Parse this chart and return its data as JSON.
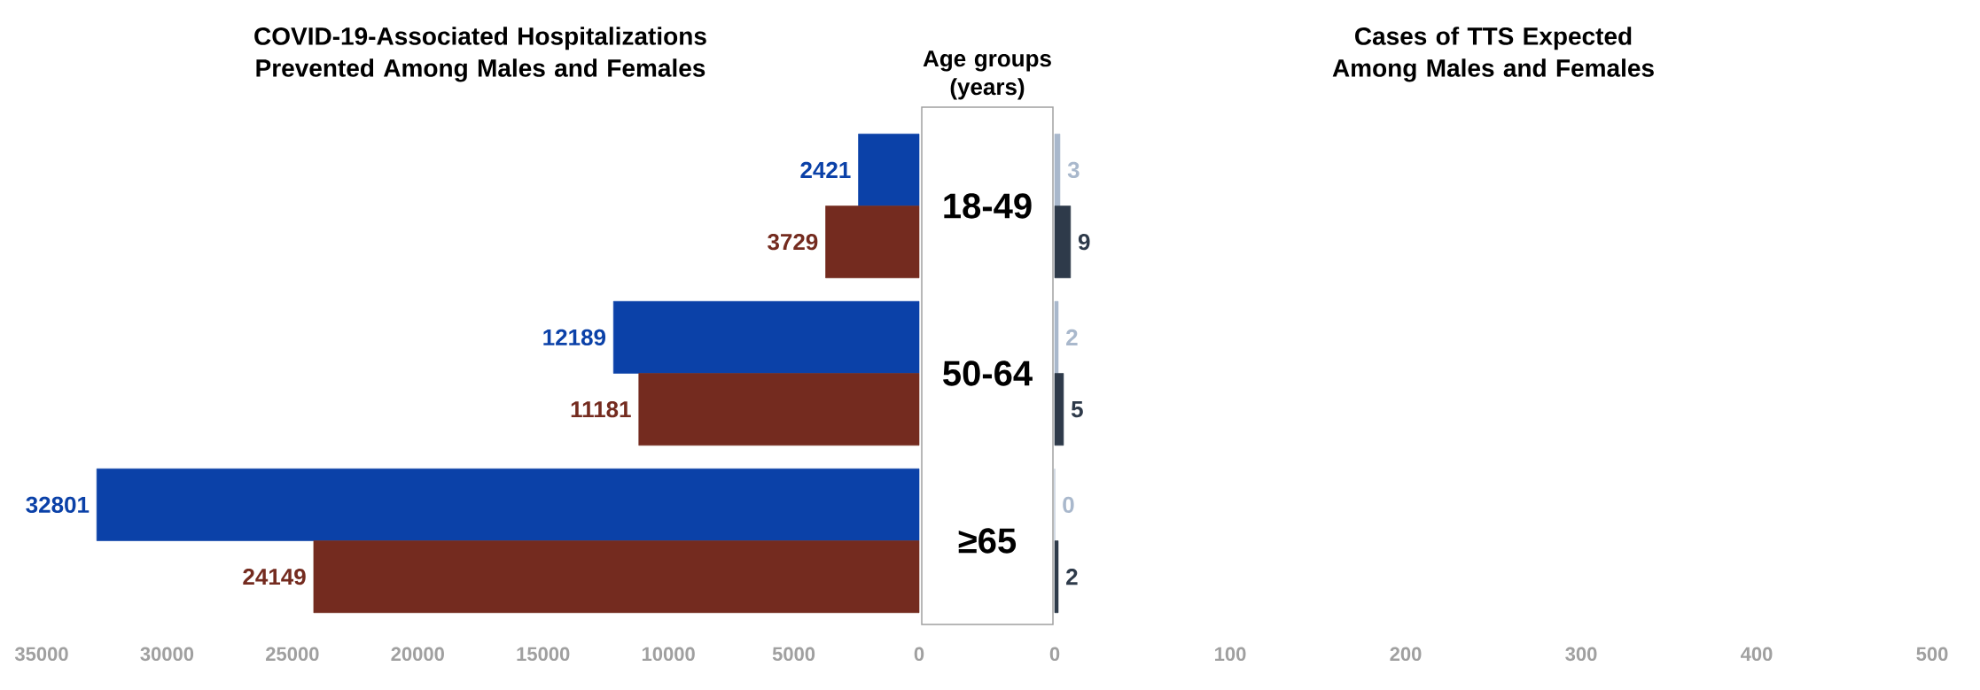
{
  "chart_data": [
    {
      "type": "bar",
      "orientation": "horizontal",
      "title": "COVID-19-Associated Hospitalizations Prevented Among Males and Females",
      "ylabel": "Age groups (years)",
      "categories": [
        "18-49",
        "50-64",
        "≥65"
      ],
      "series": [
        {
          "color": "#0b41a8",
          "values": [
            2421,
            12189,
            32801
          ]
        },
        {
          "color": "#742b1f",
          "values": [
            3729,
            11181,
            24149
          ]
        }
      ],
      "xlim": [
        35000,
        0
      ],
      "xticks": [
        35000,
        30000,
        25000,
        20000,
        15000,
        10000,
        5000,
        0
      ],
      "data_labels": true
    },
    {
      "type": "bar",
      "orientation": "horizontal",
      "title": "Cases of TTS Expected Among Males and Females",
      "categories": [
        null,
        null,
        null
      ],
      "series": [
        {
          "color": "#a9b8cc",
          "values": [
            3,
            2,
            0
          ]
        },
        {
          "color": "#2e3a4a",
          "values": [
            9,
            5,
            2
          ]
        }
      ],
      "xlim": [
        0,
        500
      ],
      "xticks": [
        0,
        100,
        200,
        300,
        400,
        500
      ],
      "data_labels": true
    }
  ]
}
